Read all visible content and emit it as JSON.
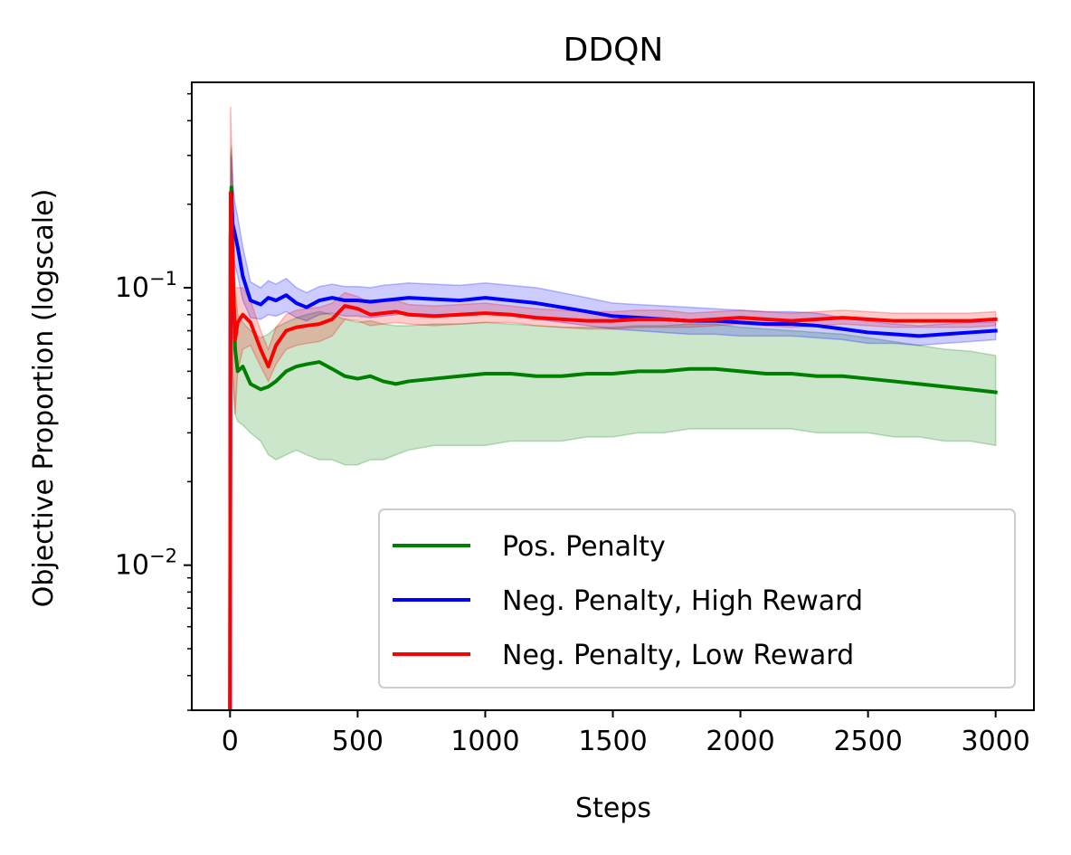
{
  "chart_data": {
    "type": "line",
    "title": "DDQN",
    "xlabel": "Steps",
    "ylabel": "Objective Proportion (logscale)",
    "xlim": [
      -150,
      3150
    ],
    "ylim": [
      0.003,
      0.55
    ],
    "yscale": "log",
    "grid": false,
    "legend_position": "lower right",
    "x_ticks": [
      0,
      500,
      1000,
      1500,
      2000,
      2500,
      3000
    ],
    "x_tick_labels": [
      "0",
      "500",
      "1000",
      "1500",
      "2000",
      "2500",
      "3000"
    ],
    "y_major_ticks": [
      {
        "value": 0.01,
        "base": "10",
        "exponent": "−2"
      },
      {
        "value": 0.1,
        "base": "10",
        "exponent": "−1"
      }
    ],
    "series": [
      {
        "name": "Pos. Penalty",
        "color": "#008000",
        "band_color": "#008000",
        "x": [
          0,
          2,
          5,
          10,
          20,
          30,
          50,
          80,
          120,
          150,
          180,
          220,
          260,
          300,
          350,
          400,
          450,
          500,
          550,
          600,
          650,
          700,
          800,
          900,
          1000,
          1100,
          1200,
          1300,
          1400,
          1500,
          1600,
          1700,
          1800,
          1900,
          2000,
          2100,
          2200,
          2300,
          2400,
          2500,
          2600,
          2700,
          2800,
          2900,
          3000
        ],
        "y": [
          0.003,
          0.15,
          0.23,
          0.12,
          0.06,
          0.05,
          0.052,
          0.045,
          0.043,
          0.044,
          0.046,
          0.05,
          0.052,
          0.053,
          0.054,
          0.051,
          0.048,
          0.047,
          0.048,
          0.046,
          0.045,
          0.046,
          0.047,
          0.048,
          0.049,
          0.049,
          0.048,
          0.048,
          0.049,
          0.049,
          0.05,
          0.05,
          0.051,
          0.051,
          0.05,
          0.049,
          0.049,
          0.048,
          0.048,
          0.047,
          0.046,
          0.045,
          0.044,
          0.043,
          0.042
        ],
        "lower": [
          0.003,
          0.06,
          0.1,
          0.05,
          0.035,
          0.033,
          0.032,
          0.03,
          0.028,
          0.025,
          0.024,
          0.025,
          0.026,
          0.025,
          0.024,
          0.024,
          0.023,
          0.023,
          0.024,
          0.024,
          0.025,
          0.026,
          0.027,
          0.027,
          0.027,
          0.028,
          0.028,
          0.028,
          0.029,
          0.029,
          0.03,
          0.03,
          0.031,
          0.031,
          0.031,
          0.031,
          0.031,
          0.03,
          0.03,
          0.03,
          0.029,
          0.029,
          0.028,
          0.028,
          0.027
        ],
        "upper": [
          0.003,
          0.3,
          0.32,
          0.25,
          0.1,
          0.08,
          0.075,
          0.07,
          0.066,
          0.068,
          0.072,
          0.075,
          0.078,
          0.08,
          0.082,
          0.08,
          0.077,
          0.075,
          0.076,
          0.074,
          0.073,
          0.073,
          0.074,
          0.074,
          0.075,
          0.074,
          0.073,
          0.072,
          0.072,
          0.072,
          0.073,
          0.073,
          0.074,
          0.074,
          0.072,
          0.071,
          0.07,
          0.069,
          0.068,
          0.066,
          0.064,
          0.062,
          0.06,
          0.059,
          0.057
        ]
      },
      {
        "name": "Neg. Penalty, High Reward",
        "color": "#0000ff",
        "band_color": "#0000ff",
        "x": [
          0,
          2,
          5,
          10,
          20,
          30,
          50,
          80,
          120,
          150,
          180,
          220,
          260,
          300,
          350,
          400,
          450,
          500,
          550,
          600,
          650,
          700,
          800,
          900,
          1000,
          1100,
          1200,
          1300,
          1400,
          1500,
          1600,
          1700,
          1800,
          1900,
          2000,
          2100,
          2200,
          2300,
          2400,
          2500,
          2600,
          2700,
          2800,
          2900,
          3000
        ],
        "y": [
          0.003,
          0.15,
          0.22,
          0.17,
          0.155,
          0.14,
          0.11,
          0.09,
          0.087,
          0.092,
          0.09,
          0.094,
          0.088,
          0.085,
          0.09,
          0.092,
          0.09,
          0.09,
          0.089,
          0.09,
          0.091,
          0.092,
          0.091,
          0.09,
          0.092,
          0.09,
          0.088,
          0.085,
          0.082,
          0.079,
          0.078,
          0.077,
          0.076,
          0.076,
          0.075,
          0.074,
          0.074,
          0.073,
          0.071,
          0.069,
          0.068,
          0.067,
          0.068,
          0.069,
          0.07
        ],
        "lower": [
          0.003,
          0.1,
          0.15,
          0.13,
          0.12,
          0.11,
          0.09,
          0.078,
          0.077,
          0.08,
          0.079,
          0.082,
          0.078,
          0.076,
          0.08,
          0.081,
          0.079,
          0.079,
          0.078,
          0.079,
          0.08,
          0.081,
          0.08,
          0.079,
          0.081,
          0.079,
          0.077,
          0.075,
          0.073,
          0.071,
          0.07,
          0.069,
          0.068,
          0.068,
          0.067,
          0.067,
          0.067,
          0.066,
          0.065,
          0.063,
          0.063,
          0.062,
          0.063,
          0.064,
          0.065
        ],
        "upper": [
          0.003,
          0.22,
          0.3,
          0.24,
          0.2,
          0.18,
          0.14,
          0.105,
          0.1,
          0.106,
          0.103,
          0.108,
          0.1,
          0.096,
          0.101,
          0.103,
          0.101,
          0.101,
          0.1,
          0.102,
          0.103,
          0.104,
          0.103,
          0.102,
          0.104,
          0.102,
          0.1,
          0.096,
          0.092,
          0.088,
          0.087,
          0.086,
          0.085,
          0.084,
          0.083,
          0.082,
          0.082,
          0.081,
          0.078,
          0.076,
          0.074,
          0.073,
          0.074,
          0.075,
          0.075
        ]
      },
      {
        "name": "Neg. Penalty, Low Reward",
        "color": "#ff0000",
        "band_color": "#ff0000",
        "x": [
          0,
          2,
          5,
          10,
          20,
          30,
          50,
          80,
          120,
          150,
          180,
          220,
          260,
          300,
          350,
          400,
          450,
          500,
          550,
          600,
          650,
          700,
          800,
          900,
          1000,
          1100,
          1200,
          1300,
          1400,
          1500,
          1600,
          1700,
          1800,
          1900,
          2000,
          2100,
          2200,
          2300,
          2400,
          2500,
          2600,
          2700,
          2800,
          2900,
          3000
        ],
        "y": [
          0.003,
          0.22,
          0.21,
          0.12,
          0.065,
          0.075,
          0.08,
          0.075,
          0.06,
          0.052,
          0.062,
          0.07,
          0.072,
          0.073,
          0.074,
          0.077,
          0.086,
          0.084,
          0.08,
          0.081,
          0.082,
          0.08,
          0.079,
          0.08,
          0.081,
          0.08,
          0.078,
          0.077,
          0.076,
          0.076,
          0.077,
          0.077,
          0.076,
          0.077,
          0.078,
          0.077,
          0.076,
          0.077,
          0.078,
          0.077,
          0.076,
          0.076,
          0.076,
          0.076,
          0.077
        ],
        "lower": [
          0.003,
          0.1,
          0.12,
          0.05,
          0.035,
          0.05,
          0.06,
          0.062,
          0.052,
          0.046,
          0.053,
          0.06,
          0.062,
          0.063,
          0.064,
          0.067,
          0.077,
          0.076,
          0.073,
          0.074,
          0.075,
          0.074,
          0.073,
          0.074,
          0.075,
          0.075,
          0.073,
          0.072,
          0.071,
          0.071,
          0.072,
          0.072,
          0.072,
          0.073,
          0.074,
          0.073,
          0.072,
          0.073,
          0.074,
          0.073,
          0.072,
          0.072,
          0.072,
          0.072,
          0.073
        ],
        "upper": [
          0.003,
          0.45,
          0.35,
          0.25,
          0.1,
          0.1,
          0.1,
          0.09,
          0.07,
          0.06,
          0.072,
          0.08,
          0.083,
          0.084,
          0.085,
          0.088,
          0.096,
          0.093,
          0.088,
          0.089,
          0.09,
          0.087,
          0.086,
          0.087,
          0.088,
          0.086,
          0.084,
          0.083,
          0.082,
          0.082,
          0.083,
          0.083,
          0.081,
          0.082,
          0.083,
          0.082,
          0.081,
          0.082,
          0.083,
          0.082,
          0.081,
          0.081,
          0.081,
          0.081,
          0.082
        ]
      }
    ]
  }
}
